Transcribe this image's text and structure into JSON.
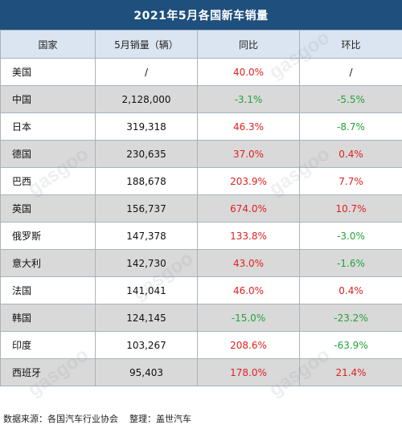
{
  "title": "2021年5月各国新车销量",
  "headers": [
    "国家",
    "5月销量（辆）",
    "同比",
    "环比"
  ],
  "rows": [
    {
      "country": "美国",
      "sales": "/",
      "yoy": "40.0%",
      "mom": "/"
    },
    {
      "country": "中国",
      "sales": "2,128,000",
      "yoy": "-3.1%",
      "mom": "-5.5%"
    },
    {
      "country": "日本",
      "sales": "319,318",
      "yoy": "46.3%",
      "mom": "-8.7%"
    },
    {
      "country": "德国",
      "sales": "230,635",
      "yoy": "37.0%",
      "mom": "0.4%"
    },
    {
      "country": "巴西",
      "sales": "188,678",
      "yoy": "203.9%",
      "mom": "7.7%"
    },
    {
      "country": "英国",
      "sales": "156,737",
      "yoy": "674.0%",
      "mom": "10.7%"
    },
    {
      "country": "俄罗斯",
      "sales": "147,378",
      "yoy": "133.8%",
      "mom": "-3.0%"
    },
    {
      "country": "意大利",
      "sales": "142,730",
      "yoy": "43.0%",
      "mom": "-1.6%"
    },
    {
      "country": "法国",
      "sales": "141,041",
      "yoy": "46.0%",
      "mom": "0.4%"
    },
    {
      "country": "韩国",
      "sales": "124,145",
      "yoy": "-15.0%",
      "mom": "-23.2%"
    },
    {
      "country": "印度",
      "sales": "103,267",
      "yoy": "208.6%",
      "mom": "-63.9%"
    },
    {
      "country": "西班牙",
      "sales": "95,403",
      "yoy": "178.0%",
      "mom": "21.4%"
    }
  ],
  "footer": {
    "source": "数据来源：各国汽车行业协会",
    "editor": "整理：盖世汽车"
  },
  "watermark": "gasgoo",
  "colors": {
    "title_bg": "#1f4f7d",
    "header_bg": "#dbe5f1",
    "stripe_bg": "#d9d9d9",
    "positive": "#e02020",
    "negative": "#22a33a"
  },
  "chart_data": {
    "type": "table",
    "title": "2021年5月各国新车销量",
    "columns": [
      "国家",
      "5月销量（辆）",
      "同比",
      "环比"
    ],
    "categories": [
      "美国",
      "中国",
      "日本",
      "德国",
      "巴西",
      "英国",
      "俄罗斯",
      "意大利",
      "法国",
      "韩国",
      "印度",
      "西班牙"
    ],
    "series": [
      {
        "name": "5月销量（辆）",
        "values": [
          null,
          2128000,
          319318,
          230635,
          188678,
          156737,
          147378,
          142730,
          141041,
          124145,
          103267,
          95403
        ]
      },
      {
        "name": "同比",
        "values": [
          40.0,
          -3.1,
          46.3,
          37.0,
          203.9,
          674.0,
          133.8,
          43.0,
          46.0,
          -15.0,
          208.6,
          178.0
        ]
      },
      {
        "name": "环比",
        "values": [
          null,
          -5.5,
          -8.7,
          0.4,
          7.7,
          10.7,
          -3.0,
          -1.6,
          0.4,
          -23.2,
          -63.9,
          21.4
        ]
      }
    ]
  }
}
